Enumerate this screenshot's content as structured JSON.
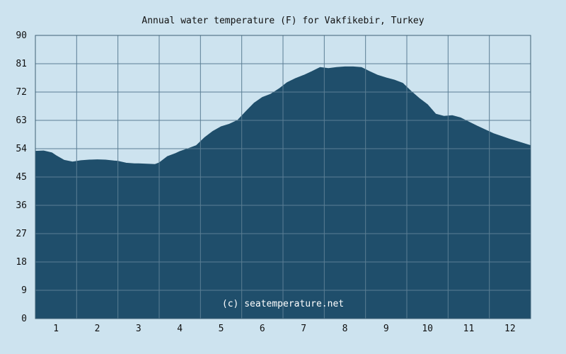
{
  "chart_data": {
    "type": "area",
    "title": "Annual water temperature (F) for Vakfikebir, Turkey",
    "xlabel": "",
    "ylabel": "",
    "watermark": "(c) seatemperature.net",
    "ylim": [
      0,
      90
    ],
    "xlim": [
      0.5,
      12.5
    ],
    "yticks": [
      0,
      9,
      18,
      27,
      36,
      45,
      54,
      63,
      72,
      81,
      90
    ],
    "yticklabels": [
      "0",
      "9",
      "18",
      "27",
      "36",
      "45",
      "54",
      "63",
      "72",
      "81",
      "90"
    ],
    "xticks": [
      1,
      2,
      3,
      4,
      5,
      6,
      7,
      8,
      9,
      10,
      11,
      12
    ],
    "xticklabels": [
      "1",
      "2",
      "3",
      "4",
      "5",
      "6",
      "7",
      "8",
      "9",
      "10",
      "11",
      "12"
    ],
    "grid": true,
    "series": [
      {
        "x": [
          0.5,
          0.7,
          0.9,
          1.0,
          1.2,
          1.4,
          1.6,
          1.8,
          2.0,
          2.2,
          2.4,
          2.5,
          2.7,
          2.9,
          3.0,
          3.2,
          3.4,
          3.5,
          3.7,
          3.9,
          4.0,
          4.2,
          4.4,
          4.6,
          4.8,
          5.0,
          5.2,
          5.4,
          5.6,
          5.8,
          6.0,
          6.2,
          6.4,
          6.6,
          6.8,
          7.0,
          7.2,
          7.4,
          7.6,
          7.8,
          8.0,
          8.2,
          8.4,
          8.6,
          8.8,
          9.0,
          9.2,
          9.4,
          9.6,
          9.8,
          10.0,
          10.2,
          10.4,
          10.6,
          10.8,
          11.0,
          11.2,
          11.4,
          11.6,
          11.8,
          12.0,
          12.2,
          12.4,
          12.5
        ],
        "values": [
          53.2,
          53.3,
          52.7,
          51.8,
          50.3,
          49.8,
          50.2,
          50.4,
          50.5,
          50.4,
          50.1,
          50.0,
          49.4,
          49.2,
          49.2,
          49.1,
          49.0,
          49.5,
          51.5,
          52.5,
          53.1,
          54.0,
          55.0,
          57.5,
          59.5,
          61.0,
          61.8,
          63.0,
          65.8,
          68.5,
          70.3,
          71.3,
          73.0,
          75.0,
          76.3,
          77.3,
          78.5,
          79.8,
          79.5,
          79.8,
          80.0,
          80.0,
          79.8,
          78.5,
          77.3,
          76.5,
          75.8,
          74.8,
          72.3,
          70.0,
          68.0,
          65.0,
          64.3,
          64.5,
          63.8,
          62.5,
          61.2,
          60.0,
          58.8,
          57.9,
          57.0,
          56.2,
          55.4,
          55.0
        ]
      }
    ]
  },
  "colors": {
    "background": "#cde3ef",
    "fill": "#1f4e6b",
    "grid": "#5b7e94",
    "frame": "#3e6075"
  }
}
